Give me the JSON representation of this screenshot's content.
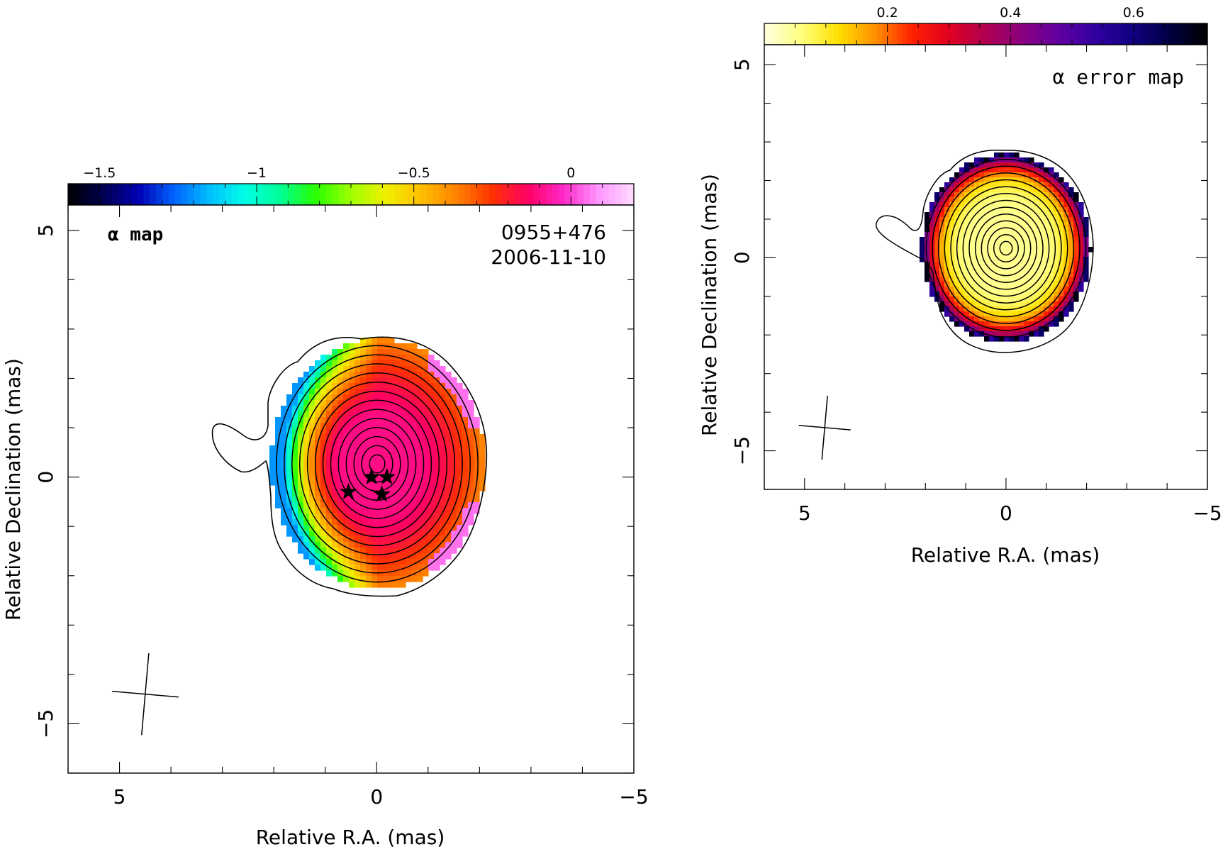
{
  "chart_data": [
    {
      "type": "heatmap",
      "panel": "left",
      "label": "α map",
      "source": "0955+476",
      "date": "2006-11-10",
      "xlabel": "Relative R.A. (mas)",
      "ylabel": "Relative Declination (mas)",
      "xlim": [
        6,
        -5
      ],
      "ylim": [
        -6,
        5.5
      ],
      "xticks": [
        5,
        0,
        -5
      ],
      "xtick_labels": [
        "5",
        "0",
        "−5"
      ],
      "yticks": [
        5,
        0,
        -5
      ],
      "ytick_labels": [
        "5",
        "0",
        "−5"
      ],
      "colorbar": {
        "min": -1.6,
        "max": 0.2,
        "ticks": [
          -1.5,
          -1,
          -0.5,
          0
        ],
        "tick_labels": [
          "−1.5",
          "−1",
          "−0.5",
          "0"
        ],
        "colors": [
          "#000000",
          "#000050",
          "#0000b4",
          "#0064ff",
          "#00beff",
          "#00ffe6",
          "#00ff96",
          "#28ff00",
          "#a0ff00",
          "#f0f000",
          "#ffbe00",
          "#ff8200",
          "#ff3200",
          "#ff0064",
          "#ff28c8",
          "#ff96ff",
          "#ffdcff"
        ]
      },
      "alpha_core": -0.1,
      "alpha_edge": -1.2,
      "contour_levels": 13,
      "component_positions": [
        [
          0.1,
          0.0
        ],
        [
          -0.2,
          0.0
        ],
        [
          0.55,
          -0.3
        ],
        [
          -0.1,
          -0.35
        ]
      ],
      "beam": {
        "major_mas": 1.6,
        "minor_mas": 1.3,
        "pa_deg": 5,
        "x": 4.5,
        "y": -4.4
      }
    },
    {
      "type": "heatmap",
      "panel": "right",
      "label": "α error map",
      "xlabel": "Relative R.A. (mas)",
      "ylabel": "Relative Declination (mas)",
      "xlim": [
        6,
        -5
      ],
      "ylim": [
        -6,
        5.5
      ],
      "xticks": [
        5,
        0,
        -5
      ],
      "xtick_labels": [
        "5",
        "0",
        "−5"
      ],
      "yticks": [
        5,
        0,
        -5
      ],
      "ytick_labels": [
        "5",
        "0",
        "−5"
      ],
      "colorbar": {
        "min": 0,
        "max": 0.72,
        "ticks": [
          0.2,
          0.4,
          0.6
        ],
        "tick_labels": [
          "0.2",
          "0.4",
          "0.6"
        ],
        "colors": [
          "#ffffe0",
          "#ffff80",
          "#ffe000",
          "#ff9000",
          "#ff2000",
          "#e00020",
          "#b00050",
          "#8a0080",
          "#6000a0",
          "#3000a0",
          "#100080",
          "#000040",
          "#000000"
        ]
      },
      "error_core": 0.05,
      "error_edge": 0.45,
      "contour_levels": 13,
      "beam": {
        "major_mas": 1.6,
        "minor_mas": 1.3,
        "pa_deg": 5,
        "x": 4.5,
        "y": -4.4
      }
    }
  ]
}
